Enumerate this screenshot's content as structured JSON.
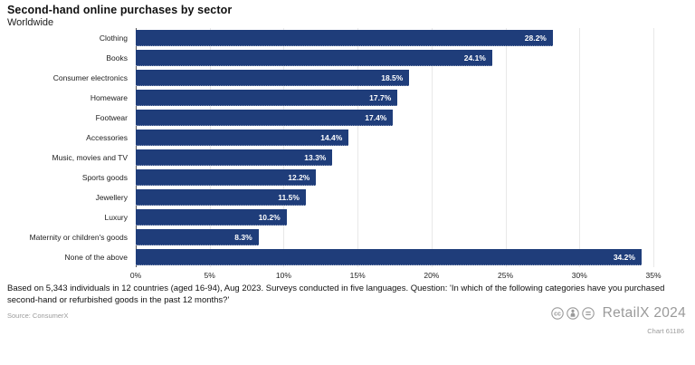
{
  "header": {
    "title": "Second-hand online purchases by sector",
    "subtitle": "Worldwide"
  },
  "chart_data": {
    "type": "bar",
    "orientation": "horizontal",
    "title": "Second-hand online purchases by sector",
    "subtitle": "Worldwide",
    "categories": [
      "Clothing",
      "Books",
      "Consumer electronics",
      "Homeware",
      "Footwear",
      "Accessories",
      "Music, movies and TV",
      "Sports goods",
      "Jewellery",
      "Luxury",
      "Maternity or children's goods",
      "None of the above"
    ],
    "values": [
      28.2,
      24.1,
      18.5,
      17.7,
      17.4,
      14.4,
      13.3,
      12.2,
      11.5,
      10.2,
      8.3,
      34.2
    ],
    "value_suffix": "%",
    "xlabel": "",
    "ylabel": "",
    "xlim": [
      0,
      35
    ],
    "x_ticks": [
      "0%",
      "5%",
      "10%",
      "15%",
      "20%",
      "25%",
      "30%",
      "35%"
    ],
    "grid": "vertical",
    "legend": false,
    "bar_color": "#1f3d7a",
    "gridline_color": "#e8e8e8",
    "axis_line_color": "#555555"
  },
  "footer": {
    "note": "Based on 5,343 individuals in 12 countries (aged 16-94), Aug 2023. Surveys conducted in five languages. Question: 'In which of the following categories have you purchased second-hand or refurbished goods in the past 12 months?'",
    "source": "Source: ConsumerX",
    "brand": "RetailX 2024",
    "chart_id": "Chart 61186"
  },
  "icons": {
    "cc_icons": [
      "cc-icon",
      "cc-by-icon",
      "cc-nd-icon"
    ]
  }
}
